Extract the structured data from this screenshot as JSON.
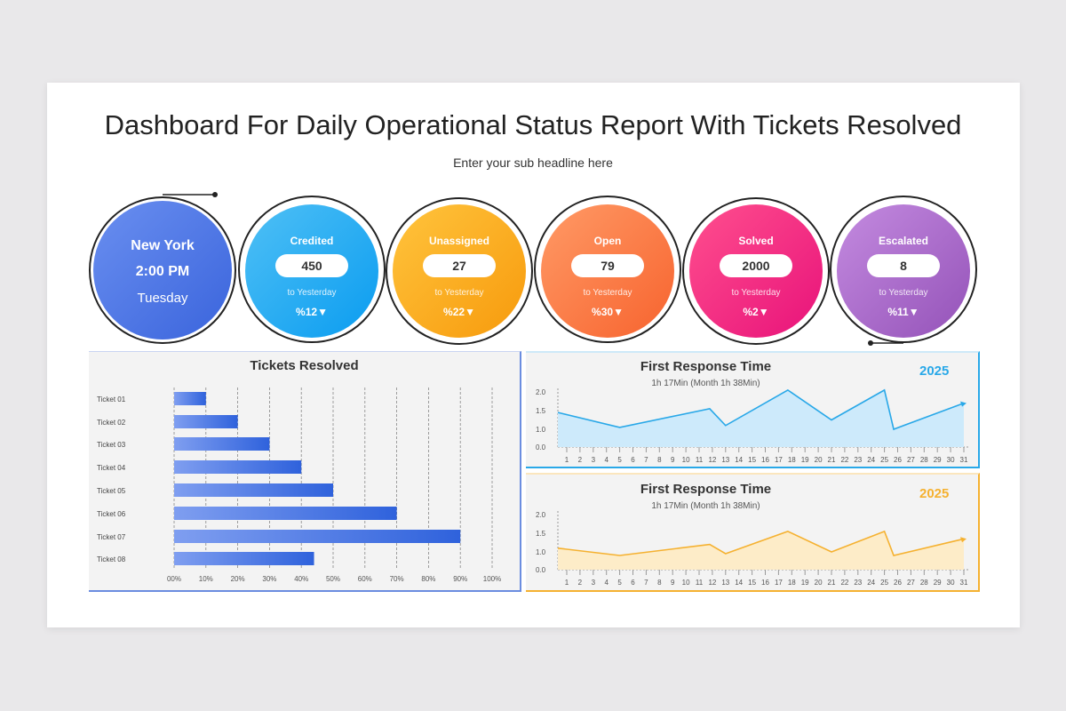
{
  "header": {
    "title": "Dashboard For Daily Operational Status Report With Tickets Resolved",
    "subtitle": "Enter your sub headline here"
  },
  "location": {
    "city": "New York",
    "time": "2:00 PM",
    "day": "Tuesday"
  },
  "kpis": [
    {
      "label": "Credited",
      "value": "450",
      "note": "to Yesterday",
      "change": "%12▼",
      "from": "#4fc0f5",
      "to": "#0a9cf0"
    },
    {
      "label": "Unassigned",
      "value": "27",
      "note": "to Yesterday",
      "change": "%22▼",
      "from": "#ffc43d",
      "to": "#f79a0c"
    },
    {
      "label": "Open",
      "value": "79",
      "note": "to Yesterday",
      "change": "%30▼",
      "from": "#ff9a66",
      "to": "#f7632e"
    },
    {
      "label": "Solved",
      "value": "2000",
      "note": "to Yesterday",
      "change": "%2▼",
      "from": "#ff4f8e",
      "to": "#e8127a"
    },
    {
      "label": "Escalated",
      "value": "8",
      "note": "to Yesterday",
      "change": "%11▼",
      "from": "#c48be0",
      "to": "#9452b8"
    }
  ],
  "chart_data": [
    {
      "type": "bar",
      "orientation": "horizontal",
      "title": "Tickets Resolved",
      "categories": [
        "Ticket 01",
        "Ticket 02",
        "Ticket 03",
        "Ticket 04",
        "Ticket 05",
        "Ticket 06",
        "Ticket 07",
        "Ticket 08"
      ],
      "values": [
        10,
        20,
        30,
        40,
        50,
        70,
        90,
        44
      ],
      "xlim": [
        0,
        100
      ],
      "xticks": [
        "00%",
        "10%",
        "20%",
        "30%",
        "40%",
        "50%",
        "60%",
        "70%",
        "80%",
        "90%",
        "100%"
      ],
      "grid": "vertical dashed",
      "color": "#3d6fe0"
    },
    {
      "type": "area",
      "title": "First Response Time",
      "subtitle": "1h 17Min (Month 1h 38Min)",
      "year": "2025",
      "color": "#29a8e8",
      "fill": "#cdeafb",
      "yticks": [
        "0.0",
        "1.0",
        "1.5",
        "2.0"
      ],
      "xticks": [
        1,
        2,
        3,
        4,
        5,
        6,
        7,
        8,
        9,
        10,
        11,
        12,
        13,
        14,
        15,
        16,
        17,
        18,
        19,
        20,
        21,
        22,
        23,
        24,
        25,
        26,
        27,
        28,
        29,
        30,
        31
      ],
      "x": [
        0.3,
        5,
        11.8,
        13,
        17.7,
        21,
        25,
        25.7,
        31
      ],
      "y": [
        1.45,
        1.05,
        1.55,
        1.1,
        2.05,
        1.25,
        2.05,
        1.0,
        1.7
      ]
    },
    {
      "type": "area",
      "title": "First Response Time",
      "subtitle": "1h 17Min (Month 1h 38Min)",
      "year": "2025",
      "color": "#f5b130",
      "fill": "#fdecc8",
      "yticks": [
        "0.0",
        "1.0",
        "1.5",
        "2.0"
      ],
      "xticks": [
        1,
        2,
        3,
        4,
        5,
        6,
        7,
        8,
        9,
        10,
        11,
        12,
        13,
        14,
        15,
        16,
        17,
        18,
        19,
        20,
        21,
        22,
        23,
        24,
        25,
        26,
        27,
        28,
        29,
        30,
        31
      ],
      "x": [
        0.3,
        5,
        11.8,
        13,
        17.7,
        21,
        25,
        25.7,
        31
      ],
      "y": [
        1.1,
        0.8,
        1.2,
        0.9,
        1.55,
        1.0,
        1.55,
        0.8,
        1.35
      ]
    }
  ]
}
